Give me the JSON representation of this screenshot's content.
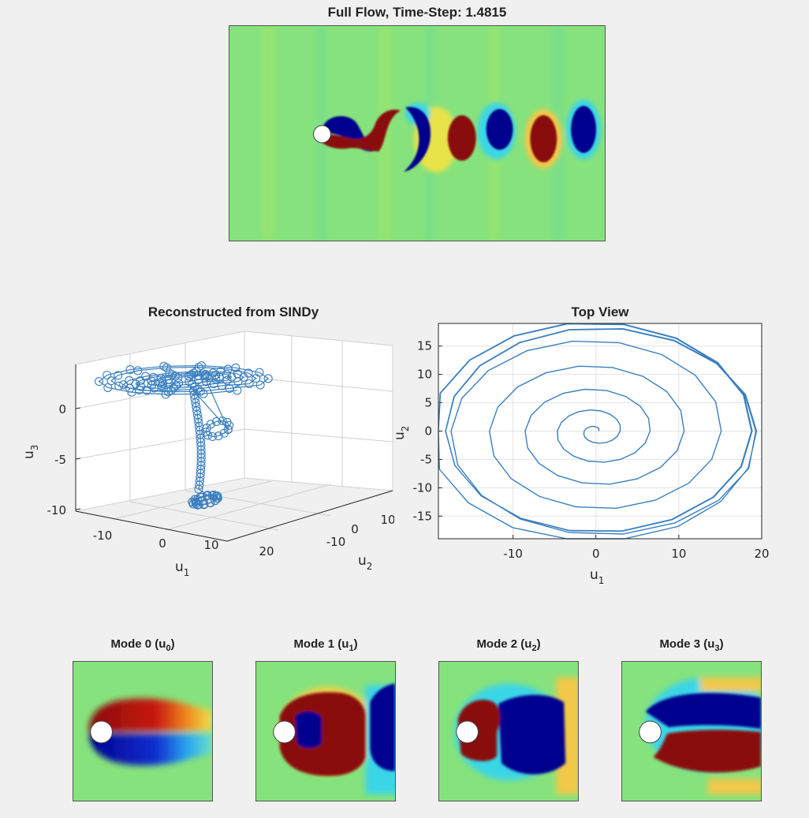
{
  "full_flow": {
    "title": "Full Flow, Time-Step: 1.4815"
  },
  "sindy": {
    "title": "Reconstructed from SINDy",
    "xlabel": "u",
    "xlabel_sub": "1",
    "ylabel": "u",
    "ylabel_sub": "2",
    "zlabel": "u",
    "zlabel_sub": "3",
    "x_ticks": [
      "-10",
      "0",
      "10",
      "20"
    ],
    "y_ticks": [
      "-10",
      "0",
      "10"
    ],
    "z_ticks": [
      "0",
      "-5",
      "-10"
    ]
  },
  "top_view": {
    "title": "Top View",
    "xlabel": "u",
    "xlabel_sub": "1",
    "ylabel": "u",
    "ylabel_sub": "2"
  },
  "modes": [
    {
      "label": "Mode 0 (u",
      "sub": "0",
      "close": ")"
    },
    {
      "label": "Mode 1 (u",
      "sub": "1",
      "close": ")"
    },
    {
      "label": "Mode 2 (u",
      "sub": "2",
      "close": ")"
    },
    {
      "label": "Mode 3 (u",
      "sub": "3",
      "close": ")"
    }
  ],
  "colors": {
    "background": "#f0f0f0",
    "trajectory": "#3a7fbf",
    "field_base": "#86e27c",
    "jet_red": "#8a0a0a",
    "jet_blue": "#00008e"
  },
  "chart_data": [
    {
      "type": "line",
      "name": "top-view-spiral",
      "title": "Top View",
      "xlabel": "u1",
      "ylabel": "u2",
      "xlim": [
        -19,
        20
      ],
      "ylim": [
        -19,
        19
      ],
      "x_ticks": [
        -10,
        0,
        10,
        20
      ],
      "y_ticks": [
        -15,
        -10,
        -5,
        0,
        5,
        10,
        15
      ],
      "grid": true,
      "spiral": {
        "center": [
          0,
          0
        ],
        "r_start": 0.3,
        "r_end": 19.5,
        "turns": 8.5,
        "points_per_turn": 18,
        "limit_cycle_turns": 3.5
      }
    },
    {
      "type": "scatter",
      "name": "sindy-3d-trajectory",
      "title": "Reconstructed from SINDy",
      "xlabel": "u1",
      "ylabel": "u2",
      "zlabel": "u3",
      "x_ticks": [
        -10,
        0,
        10,
        20
      ],
      "y_ticks": [
        -10,
        0,
        10
      ],
      "z_ticks": [
        0,
        -5,
        -10
      ],
      "marker": "circle",
      "grid": true
    }
  ]
}
